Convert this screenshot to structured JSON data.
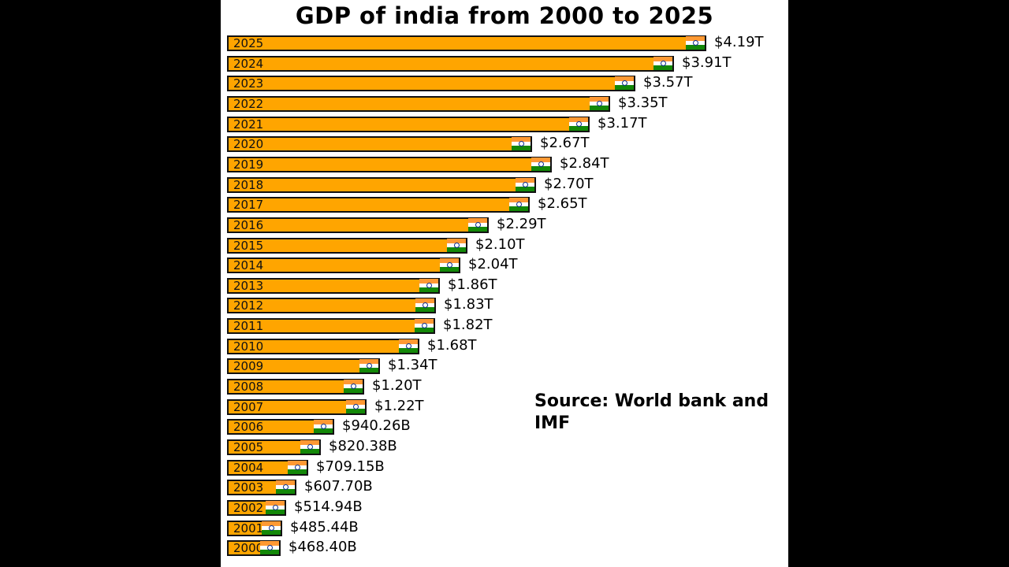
{
  "chart_data": {
    "type": "bar",
    "orientation": "horizontal",
    "title": "GDP of india from 2000 to 2025",
    "source_note": "Source: World bank and IMF",
    "colors": {
      "bar": "#ffa500",
      "bar_border": "#111111",
      "flag_saffron": "#ff9933",
      "flag_white": "#ffffff",
      "flag_green": "#138808",
      "flag_chakra": "#0a2c8c"
    },
    "flag_icon": "india-flag-icon",
    "value_unit": "trillion USD",
    "bars": [
      {
        "category": "2025",
        "value": 4.19,
        "label": "$4.19T"
      },
      {
        "category": "2024",
        "value": 3.91,
        "label": "$3.91T"
      },
      {
        "category": "2023",
        "value": 3.57,
        "label": "$3.57T"
      },
      {
        "category": "2022",
        "value": 3.35,
        "label": "$3.35T"
      },
      {
        "category": "2021",
        "value": 3.17,
        "label": "$3.17T"
      },
      {
        "category": "2020",
        "value": 2.67,
        "label": "$2.67T"
      },
      {
        "category": "2019",
        "value": 2.84,
        "label": "$2.84T"
      },
      {
        "category": "2018",
        "value": 2.7,
        "label": "$2.70T"
      },
      {
        "category": "2017",
        "value": 2.65,
        "label": "$2.65T"
      },
      {
        "category": "2016",
        "value": 2.29,
        "label": "$2.29T"
      },
      {
        "category": "2015",
        "value": 2.1,
        "label": "$2.10T"
      },
      {
        "category": "2014",
        "value": 2.04,
        "label": "$2.04T"
      },
      {
        "category": "2013",
        "value": 1.86,
        "label": "$1.86T"
      },
      {
        "category": "2012",
        "value": 1.83,
        "label": "$1.83T"
      },
      {
        "category": "2011",
        "value": 1.82,
        "label": "$1.82T"
      },
      {
        "category": "2010",
        "value": 1.68,
        "label": "$1.68T"
      },
      {
        "category": "2009",
        "value": 1.34,
        "label": "$1.34T"
      },
      {
        "category": "2008",
        "value": 1.2,
        "label": "$1.20T"
      },
      {
        "category": "2007",
        "value": 1.22,
        "label": "$1.22T"
      },
      {
        "category": "2006",
        "value": 0.94026,
        "label": "$940.26B"
      },
      {
        "category": "2005",
        "value": 0.82038,
        "label": "$820.38B"
      },
      {
        "category": "2004",
        "value": 0.70915,
        "label": "$709.15B"
      },
      {
        "category": "2003",
        "value": 0.6077,
        "label": "$607.70B"
      },
      {
        "category": "2002",
        "value": 0.51494,
        "label": "$514.94B"
      },
      {
        "category": "2001",
        "value": 0.48544,
        "label": "$485.44B"
      },
      {
        "category": "2000",
        "value": 0.4684,
        "label": "$468.40B"
      }
    ]
  }
}
